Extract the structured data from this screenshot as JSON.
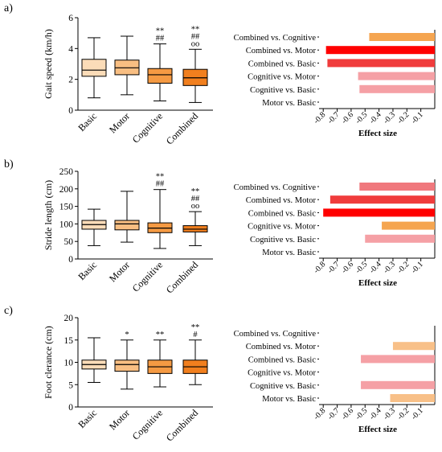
{
  "colors": {
    "basic": "#fbdcb8",
    "motor": "#f8be82",
    "cognitive": "#f59a43",
    "combined": "#f17f1e",
    "text": "#000000"
  },
  "effect_label": "Effect size",
  "effect_ticks": [
    "-0.8",
    "-0.7",
    "-0.6",
    "-0.5",
    "-0.4",
    "-0.3",
    "-0.2",
    "-0.1"
  ],
  "comparison_labels": [
    "Combined vs. Cognitive",
    "Combined vs. Motor",
    "Combined vs. Basic",
    "Cognitive vs. Motor",
    "Cognitive vs. Basic",
    "Motor vs. Basic"
  ],
  "chart_data": [
    {
      "panel": "a)",
      "type": "boxplot",
      "ylabel": "Gait speed (km/h)",
      "ylim": [
        0,
        6
      ],
      "yticks": [
        "0",
        "2",
        "4",
        "6"
      ],
      "categories": [
        "Basic",
        "Motor",
        "Cognitive",
        "Combined"
      ],
      "boxes": [
        {
          "min": 0.8,
          "q1": 2.2,
          "median": 2.6,
          "q3": 3.3,
          "max": 4.7
        },
        {
          "min": 1.0,
          "q1": 2.3,
          "median": 2.75,
          "q3": 3.25,
          "max": 4.8
        },
        {
          "min": 0.6,
          "q1": 1.75,
          "median": 2.3,
          "q3": 2.7,
          "max": 4.3
        },
        {
          "min": 0.5,
          "q1": 1.6,
          "median": 2.1,
          "q3": 2.65,
          "max": 3.95
        }
      ],
      "significance": [
        [],
        [],
        [
          "**",
          "##"
        ],
        [
          "**",
          "##",
          "οο"
        ]
      ]
    },
    {
      "panel": "a)",
      "type": "bar",
      "xlabel": "Effect size",
      "xlim": [
        -0.85,
        0
      ],
      "categories": [
        "Combined vs. Cognitive",
        "Combined vs. Motor",
        "Combined vs. Basic",
        "Cognitive vs. Motor",
        "Cognitive vs. Basic",
        "Motor vs. Basic"
      ],
      "values": [
        -0.47,
        -0.78,
        -0.77,
        -0.55,
        -0.54,
        0
      ],
      "bar_colors": [
        "#f5a550",
        "#ff0000",
        "#f03c3c",
        "#f5a0a5",
        "#f5a0a5",
        "#ffffff"
      ]
    },
    {
      "panel": "b)",
      "type": "boxplot",
      "ylabel": "Stride length (cm)",
      "ylim": [
        0,
        250
      ],
      "yticks": [
        "0",
        "50",
        "100",
        "150",
        "200",
        "250"
      ],
      "categories": [
        "Basic",
        "Motor",
        "Cognitive",
        "Combined"
      ],
      "boxes": [
        {
          "min": 38,
          "q1": 85,
          "median": 98,
          "q3": 110,
          "max": 142
        },
        {
          "min": 48,
          "q1": 83,
          "median": 100,
          "q3": 110,
          "max": 193
        },
        {
          "min": 30,
          "q1": 75,
          "median": 88,
          "q3": 103,
          "max": 198
        },
        {
          "min": 38,
          "q1": 77,
          "median": 85,
          "q3": 95,
          "max": 135
        }
      ],
      "significance": [
        [],
        [],
        [
          "**",
          "##"
        ],
        [
          "**",
          "##",
          "οο"
        ]
      ]
    },
    {
      "panel": "b)",
      "type": "bar",
      "xlabel": "Effect size",
      "xlim": [
        -0.85,
        0
      ],
      "categories": [
        "Combined vs. Cognitive",
        "Combined vs. Motor",
        "Combined vs. Basic",
        "Cognitive vs. Motor",
        "Cognitive vs. Basic",
        "Motor vs. Basic"
      ],
      "values": [
        -0.54,
        -0.75,
        -0.8,
        -0.38,
        -0.5,
        0
      ],
      "bar_colors": [
        "#f0787d",
        "#f03c3c",
        "#ff0000",
        "#f5a550",
        "#f5a0a5",
        "#ffffff"
      ]
    },
    {
      "panel": "c)",
      "type": "boxplot",
      "ylabel": "Foot clerance (cm)",
      "ylim": [
        0,
        20
      ],
      "yticks": [
        "0",
        "5",
        "10",
        "15",
        "20"
      ],
      "categories": [
        "Basic",
        "Motor",
        "Cognitive",
        "Combined"
      ],
      "boxes": [
        {
          "min": 5.5,
          "q1": 8.5,
          "median": 9.5,
          "q3": 10.5,
          "max": 15.5
        },
        {
          "min": 4.0,
          "q1": 8.0,
          "median": 9.5,
          "q3": 10.5,
          "max": 15.0
        },
        {
          "min": 4.5,
          "q1": 7.5,
          "median": 9.0,
          "q3": 10.5,
          "max": 15.0
        },
        {
          "min": 5.0,
          "q1": 7.5,
          "median": 9.0,
          "q3": 10.5,
          "max": 15.0
        }
      ],
      "significance": [
        [],
        [
          "*"
        ],
        [
          "**"
        ],
        [
          "**",
          "#"
        ]
      ]
    },
    {
      "panel": "c)",
      "type": "bar",
      "xlabel": "Effect size",
      "xlim": [
        -0.85,
        0
      ],
      "categories": [
        "Combined vs. Cognitive",
        "Combined vs. Motor",
        "Combined vs. Basic",
        "Cognitive vs. Motor",
        "Cognitive vs. Basic",
        "Motor vs. Basic"
      ],
      "values": [
        0,
        -0.3,
        -0.53,
        0,
        -0.53,
        -0.32
      ],
      "bar_colors": [
        "#ffffff",
        "#f8c088",
        "#f5a0a5",
        "#ffffff",
        "#f5a0a5",
        "#f8c088"
      ]
    }
  ]
}
